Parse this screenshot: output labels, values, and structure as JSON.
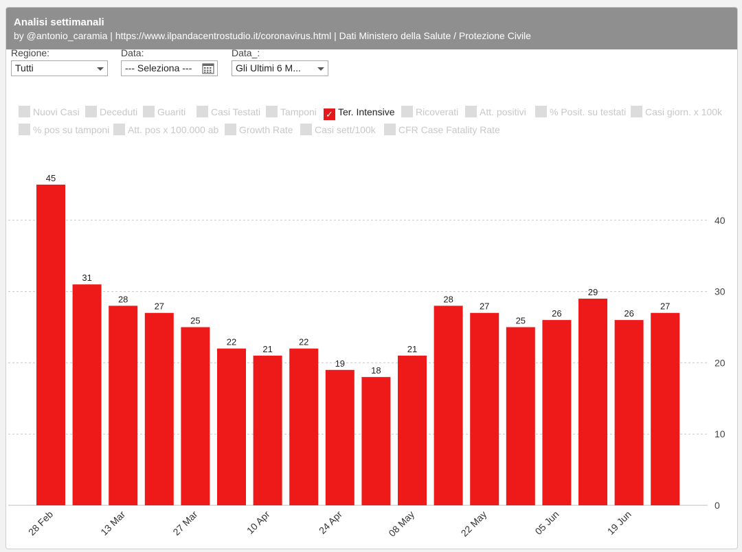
{
  "header": {
    "title": "Analisi settimanali",
    "subtitle": "by @antonio_caramia | https://www.ilpandacentrostudio.it/coronavirus.html | Dati Ministero della Salute / Protezione Civile"
  },
  "filters": {
    "regione": {
      "label": "Regione:",
      "value": "Tutti"
    },
    "data": {
      "label": "Data:",
      "value": "--- Seleziona ---"
    },
    "data2": {
      "label": "Data_:",
      "value": "Gli Ultimi 6 M..."
    }
  },
  "toggles": [
    {
      "label": "Nuovi Casi",
      "checked": false
    },
    {
      "label": "Deceduti",
      "checked": false
    },
    {
      "label": "Guariti",
      "checked": false
    },
    {
      "label": "Casi Testati",
      "checked": false
    },
    {
      "label": "Tamponi",
      "checked": false
    },
    {
      "label": "Ter. Intensive",
      "checked": true
    },
    {
      "label": "Ricoverati",
      "checked": false
    },
    {
      "label": "Att. positivi",
      "checked": false
    },
    {
      "label": "% Posit. su testati",
      "checked": false
    },
    {
      "label": "Casi giorn. x 100k",
      "checked": false
    },
    {
      "label": "% pos su tamponi",
      "checked": false
    },
    {
      "label": "Att. pos x 100.000 ab",
      "checked": false
    },
    {
      "label": "Growth Rate",
      "checked": false
    },
    {
      "label": "Casi sett/100k",
      "checked": false
    },
    {
      "label": "CFR Case Fatality Rate",
      "checked": false
    }
  ],
  "chart_data": {
    "type": "bar",
    "categories": [
      "28 Feb",
      "",
      "13 Mar",
      "",
      "27 Mar",
      "",
      "10 Apr",
      "",
      "24 Apr",
      "",
      "08 May",
      "",
      "22 May",
      "",
      "05 Jun",
      "",
      "19 Jun",
      ""
    ],
    "values": [
      45,
      31,
      28,
      27,
      25,
      22,
      21,
      22,
      19,
      18,
      21,
      28,
      27,
      25,
      26,
      29,
      26,
      27
    ],
    "ylim": [
      0,
      45
    ],
    "yticks": [
      0,
      10,
      20,
      30,
      40
    ],
    "grid": true,
    "y_axis_side": "right",
    "bar_color": "#ee1a1a",
    "data_labels": true
  },
  "colors": {
    "header_bg": "#8f8f8f",
    "bar": "#ee1a1a",
    "checked": "#e41a1a"
  }
}
